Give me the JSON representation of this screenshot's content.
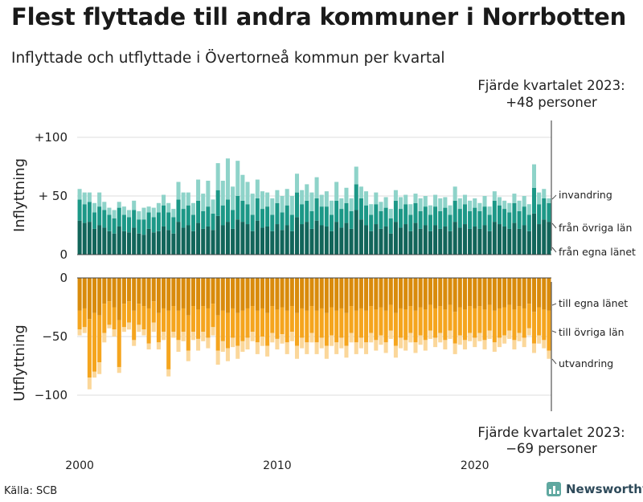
{
  "title": "Flest flyttade till andra kommuner i Norrbotten",
  "subtitle": "Inflyttade och utflyttade i Övertorneå kommun per kvartal",
  "source": "Källa: SCB",
  "brand": {
    "name": "Newsworthy",
    "icon": "bar-chart-logo-icon"
  },
  "annotation_top": {
    "line1": "Fjärde kvartalet 2023:",
    "line2": "+48 personer"
  },
  "annotation_bottom": {
    "line1": "Fjärde kvartalet 2023:",
    "line2": "−69 personer"
  },
  "colors": {
    "in_egna": "#12655a",
    "in_ovriga": "#1c9887",
    "in_invandring": "#8ed3c9",
    "out_egna": "#d98b0c",
    "out_ovriga": "#f5a51e",
    "out_utvandring": "#fbd79a",
    "grid": "#dddddd",
    "axis": "#444444"
  },
  "chart_data": {
    "type": "bar",
    "stacked": true,
    "x_start": "2000 Q1",
    "x_end": "2023 Q4",
    "x_ticks": [
      "2000",
      "2010",
      "2020"
    ],
    "panels": [
      {
        "name": "inflyttning",
        "ylabel": "Inflyttning",
        "ylim": [
          0,
          100
        ],
        "yticks": [
          "0",
          "+ 50",
          "+100"
        ],
        "ytick_values": [
          0,
          50,
          100
        ],
        "series": [
          {
            "name": "från egna länet",
            "values": [
              29,
              27,
              28,
              22,
              25,
              23,
              20,
              18,
              24,
              20,
              19,
              23,
              18,
              17,
              22,
              19,
              20,
              24,
              21,
              18,
              28,
              23,
              25,
              20,
              27,
              22,
              24,
              21,
              33,
              25,
              28,
              22,
              30,
              28,
              26,
              20,
              29,
              23,
              24,
              20,
              26,
              21,
              25,
              20,
              32,
              26,
              28,
              22,
              29,
              25,
              24,
              20,
              28,
              23,
              27,
              22,
              38,
              30,
              25,
              20,
              26,
              22,
              24,
              18,
              28,
              23,
              26,
              20,
              27,
              22,
              25,
              20,
              25,
              22,
              24,
              20,
              28,
              23,
              26,
              22,
              24,
              22,
              25,
              20,
              28,
              26,
              24,
              22,
              27,
              22,
              25,
              20,
              35,
              26,
              30,
              28
            ]
          },
          {
            "name": "från övriga län",
            "values": [
              18,
              16,
              17,
              14,
              16,
              15,
              14,
              13,
              16,
              14,
              13,
              15,
              12,
              13,
              14,
              13,
              16,
              18,
              15,
              14,
              19,
              16,
              17,
              14,
              19,
              15,
              17,
              14,
              22,
              17,
              19,
              16,
              20,
              18,
              17,
              14,
              19,
              16,
              17,
              14,
              18,
              15,
              17,
              14,
              21,
              17,
              18,
              15,
              19,
              16,
              17,
              14,
              18,
              16,
              17,
              15,
              22,
              18,
              17,
              14,
              17,
              15,
              16,
              13,
              18,
              16,
              17,
              14,
              17,
              15,
              16,
              14,
              16,
              15,
              16,
              14,
              18,
              16,
              17,
              15,
              16,
              15,
              16,
              14,
              18,
              16,
              15,
              14,
              17,
              15,
              16,
              14,
              22,
              17,
              18,
              16
            ]
          },
          {
            "name": "invandring",
            "values": [
              9,
              10,
              8,
              8,
              12,
              7,
              6,
              7,
              5,
              7,
              6,
              8,
              7,
              10,
              5,
              8,
              8,
              9,
              8,
              7,
              15,
              14,
              11,
              10,
              18,
              15,
              22,
              12,
              23,
              21,
              35,
              20,
              30,
              22,
              19,
              18,
              16,
              15,
              12,
              14,
              11,
              14,
              14,
              16,
              16,
              12,
              14,
              16,
              18,
              10,
              13,
              12,
              16,
              9,
              13,
              11,
              15,
              10,
              12,
              9,
              10,
              8,
              9,
              8,
              9,
              10,
              8,
              9,
              8,
              11,
              9,
              8,
              10,
              11,
              9,
              8,
              12,
              9,
              8,
              9,
              8,
              7,
              9,
              7,
              8,
              7,
              7,
              8,
              8,
              9,
              9,
              9,
              20,
              10,
              8,
              4
            ]
          }
        ]
      },
      {
        "name": "utflyttning",
        "ylabel": "Utflyttning",
        "ylim": [
          -115,
          0
        ],
        "yticks": [
          "0",
          "−50",
          "−100"
        ],
        "ytick_values": [
          0,
          -50,
          -100
        ],
        "series": [
          {
            "name": "till egna länet",
            "values": [
              -28,
              -26,
              -35,
              -30,
              -32,
              -22,
              -20,
              -25,
              -36,
              -22,
              -20,
              -28,
              -22,
              -24,
              -26,
              -20,
              -30,
              -26,
              -28,
              -24,
              -28,
              -26,
              -32,
              -24,
              -27,
              -24,
              -26,
              -22,
              -32,
              -28,
              -30,
              -26,
              -30,
              -28,
              -26,
              -24,
              -28,
              -26,
              -30,
              -24,
              -27,
              -25,
              -28,
              -24,
              -30,
              -26,
              -28,
              -24,
              -28,
              -26,
              -30,
              -25,
              -28,
              -26,
              -30,
              -24,
              -28,
              -26,
              -28,
              -24,
              -27,
              -25,
              -28,
              -23,
              -30,
              -26,
              -27,
              -24,
              -28,
              -25,
              -27,
              -23,
              -26,
              -24,
              -27,
              -23,
              -29,
              -25,
              -27,
              -24,
              -26,
              -24,
              -27,
              -23,
              -28,
              -26,
              -25,
              -23,
              -27,
              -24,
              -26,
              -22,
              -29,
              -25,
              -27,
              -28
            ]
          },
          {
            "name": "till övriga län",
            "values": [
              -16,
              -16,
              -50,
              -50,
              -40,
              -25,
              -20,
              -19,
              -40,
              -20,
              -18,
              -25,
              -18,
              -20,
              -30,
              -18,
              -25,
              -20,
              -50,
              -22,
              -25,
              -20,
              -30,
              -22,
              -25,
              -22,
              -25,
              -20,
              -30,
              -26,
              -30,
              -25,
              -28,
              -26,
              -25,
              -22,
              -27,
              -24,
              -28,
              -23,
              -25,
              -23,
              -27,
              -22,
              -28,
              -25,
              -27,
              -23,
              -27,
              -25,
              -28,
              -24,
              -27,
              -25,
              -28,
              -23,
              -27,
              -25,
              -27,
              -23,
              -26,
              -24,
              -27,
              -22,
              -28,
              -25,
              -26,
              -23,
              -27,
              -24,
              -26,
              -22,
              -25,
              -23,
              -26,
              -22,
              -27,
              -24,
              -26,
              -23,
              -25,
              -23,
              -26,
              -22,
              -27,
              -25,
              -24,
              -22,
              -26,
              -23,
              -25,
              -21,
              -27,
              -24,
              -26,
              -34
            ]
          },
          {
            "name": "utvandring",
            "values": [
              -5,
              -5,
              -10,
              -5,
              -10,
              -8,
              -3,
              -6,
              -5,
              -4,
              -6,
              -5,
              -6,
              -5,
              -5,
              -8,
              -6,
              -7,
              -6,
              -5,
              -10,
              -8,
              -9,
              -7,
              -10,
              -8,
              -9,
              -7,
              -12,
              -9,
              -11,
              -8,
              -11,
              -9,
              -10,
              -8,
              -10,
              -8,
              -9,
              -8,
              -9,
              -8,
              -10,
              -8,
              -11,
              -9,
              -10,
              -8,
              -10,
              -9,
              -11,
              -9,
              -10,
              -9,
              -10,
              -8,
              -10,
              -9,
              -10,
              -8,
              -9,
              -8,
              -9,
              -7,
              -10,
              -9,
              -9,
              -8,
              -9,
              -8,
              -9,
              -7,
              -8,
              -8,
              -8,
              -7,
              -9,
              -8,
              -8,
              -7,
              -8,
              -7,
              -8,
              -7,
              -8,
              -8,
              -7,
              -7,
              -8,
              -7,
              -8,
              -6,
              -8,
              -7,
              -7,
              -7
            ]
          }
        ]
      }
    ]
  }
}
